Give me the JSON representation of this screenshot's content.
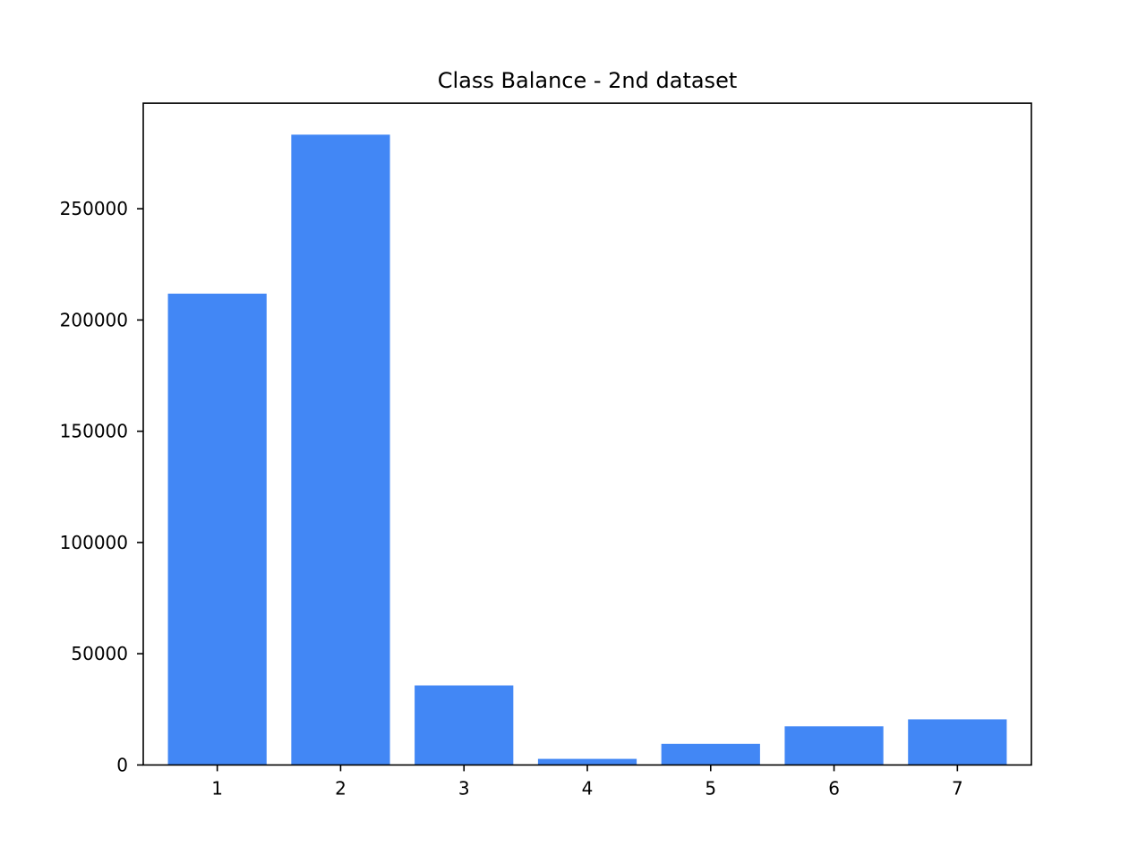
{
  "chart_data": {
    "type": "bar",
    "title": "Class Balance - 2nd dataset",
    "xlabel": "",
    "ylabel": "",
    "categories": [
      "1",
      "2",
      "3",
      "4",
      "5",
      "6",
      "7"
    ],
    "values": [
      211840,
      283301,
      35754,
      2747,
      9493,
      17367,
      20510
    ],
    "ylim": [
      0,
      297466
    ],
    "yticks": [
      0,
      50000,
      100000,
      150000,
      200000,
      250000
    ],
    "ytick_labels": [
      "0",
      "50000",
      "100000",
      "150000",
      "200000",
      "250000"
    ],
    "bar_color": "#4287f5",
    "grid": false,
    "legend": "none"
  }
}
